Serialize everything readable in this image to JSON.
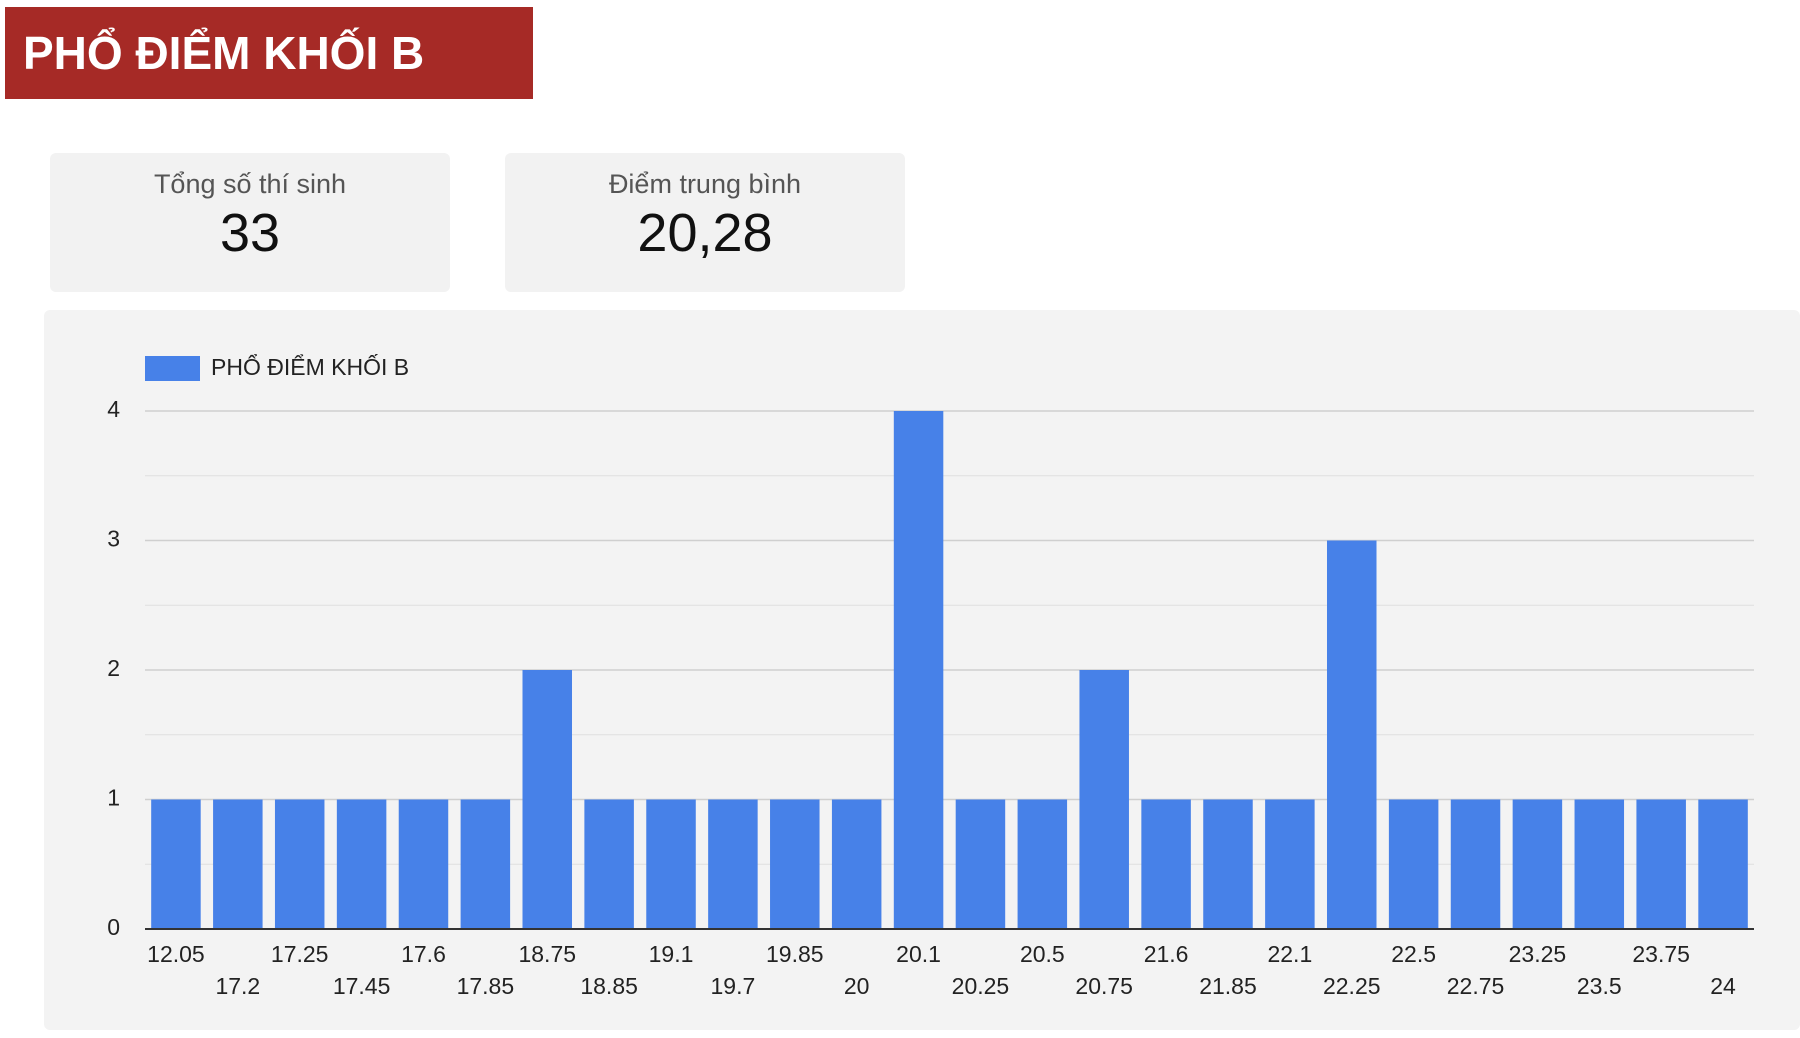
{
  "header": {
    "title": "PHỔ ĐIỂM KHỐI B"
  },
  "stats": [
    {
      "label": "Tổng số thí sinh",
      "value": "33"
    },
    {
      "label": "Điểm trung bình",
      "value": "20,28"
    }
  ],
  "chart_data": {
    "type": "bar",
    "categories": [
      "12.05",
      "17.2",
      "17.25",
      "17.45",
      "17.6",
      "17.85",
      "18.75",
      "18.85",
      "19.1",
      "19.7",
      "19.85",
      "20",
      "20.1",
      "20.25",
      "20.5",
      "20.75",
      "21.6",
      "21.85",
      "22.1",
      "22.25",
      "22.5",
      "22.75",
      "23.25",
      "23.5",
      "23.75",
      "24"
    ],
    "series": [
      {
        "name": "PHỔ ĐIỂM KHỐI B",
        "color": "#4781e8",
        "values": [
          1,
          1,
          1,
          1,
          1,
          1,
          2,
          1,
          1,
          1,
          1,
          1,
          4,
          1,
          1,
          2,
          1,
          1,
          1,
          3,
          1,
          1,
          1,
          1,
          1,
          1
        ]
      }
    ],
    "ylim": [
      0,
      4
    ],
    "yticks": [
      0,
      1,
      2,
      3,
      4
    ],
    "grid": true,
    "legend": "top-left"
  }
}
